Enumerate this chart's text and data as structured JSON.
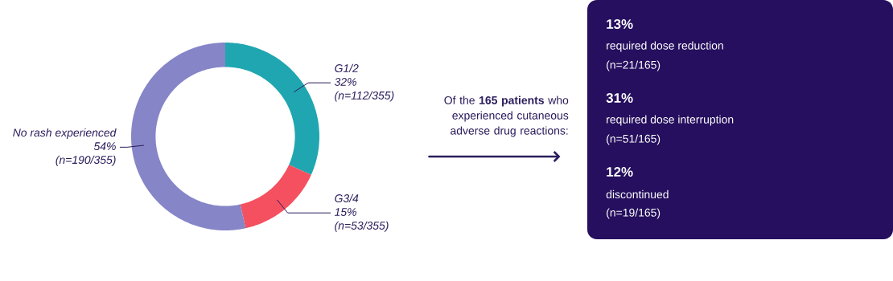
{
  "chart_data": [
    {
      "type": "donut",
      "categories": [
        "G1/2",
        "G3/4",
        "No rash experienced"
      ],
      "values": [
        32,
        15,
        54
      ],
      "colors": [
        "#20a6b0",
        "#f5505f",
        "#8585c8"
      ],
      "value_labels": [
        "32%",
        "15%",
        "54%"
      ],
      "annotations": [
        "(n=112/355)",
        "(n=53/355)",
        "(n=190/355)"
      ]
    },
    {
      "type": "other",
      "annotations": [
        "Of the **165 patients** who experienced cutaneous adverse drug reactions:",
        "13%",
        "required dose reduction",
        "(n=21/165)",
        "31%",
        "required dose interruption",
        "(n=51/165)",
        "12%",
        "discontinued",
        "(n=19/165)"
      ]
    }
  ]
}
